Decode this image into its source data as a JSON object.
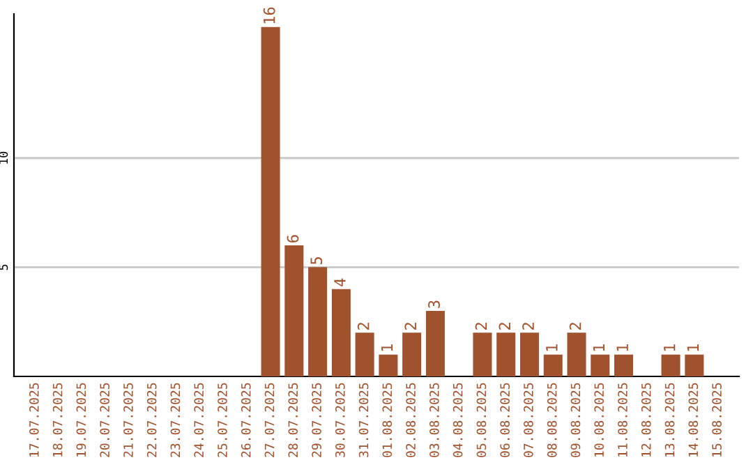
{
  "chart_data": {
    "type": "bar",
    "categories": [
      "17.07.2025",
      "18.07.2025",
      "19.07.2025",
      "20.07.2025",
      "21.07.2025",
      "22.07.2025",
      "23.07.2025",
      "24.07.2025",
      "25.07.2025",
      "26.07.2025",
      "27.07.2025",
      "28.07.2025",
      "29.07.2025",
      "30.07.2025",
      "31.07.2025",
      "01.08.2025",
      "02.08.2025",
      "03.08.2025",
      "04.08.2025",
      "05.08.2025",
      "06.08.2025",
      "07.08.2025",
      "08.08.2025",
      "09.08.2025",
      "10.08.2025",
      "11.08.2025",
      "12.08.2025",
      "13.08.2025",
      "14.08.2025",
      "15.08.2025"
    ],
    "values": [
      0,
      0,
      0,
      0,
      0,
      0,
      0,
      0,
      0,
      0,
      16,
      6,
      5,
      4,
      2,
      1,
      2,
      3,
      0,
      2,
      2,
      2,
      1,
      2,
      1,
      1,
      0,
      1,
      1,
      0
    ],
    "value_labels": [
      null,
      null,
      null,
      null,
      null,
      null,
      null,
      null,
      null,
      null,
      "16",
      "6",
      "5",
      "4",
      "2",
      "1",
      "2",
      "3",
      null,
      "2",
      "2",
      "2",
      "1",
      "2",
      "1",
      "1",
      null,
      "1",
      "1",
      null
    ],
    "color": "#a0522d",
    "ylim": [
      0,
      16.6
    ],
    "yticks": [
      5,
      10
    ],
    "grid": "y",
    "legend": false
  }
}
